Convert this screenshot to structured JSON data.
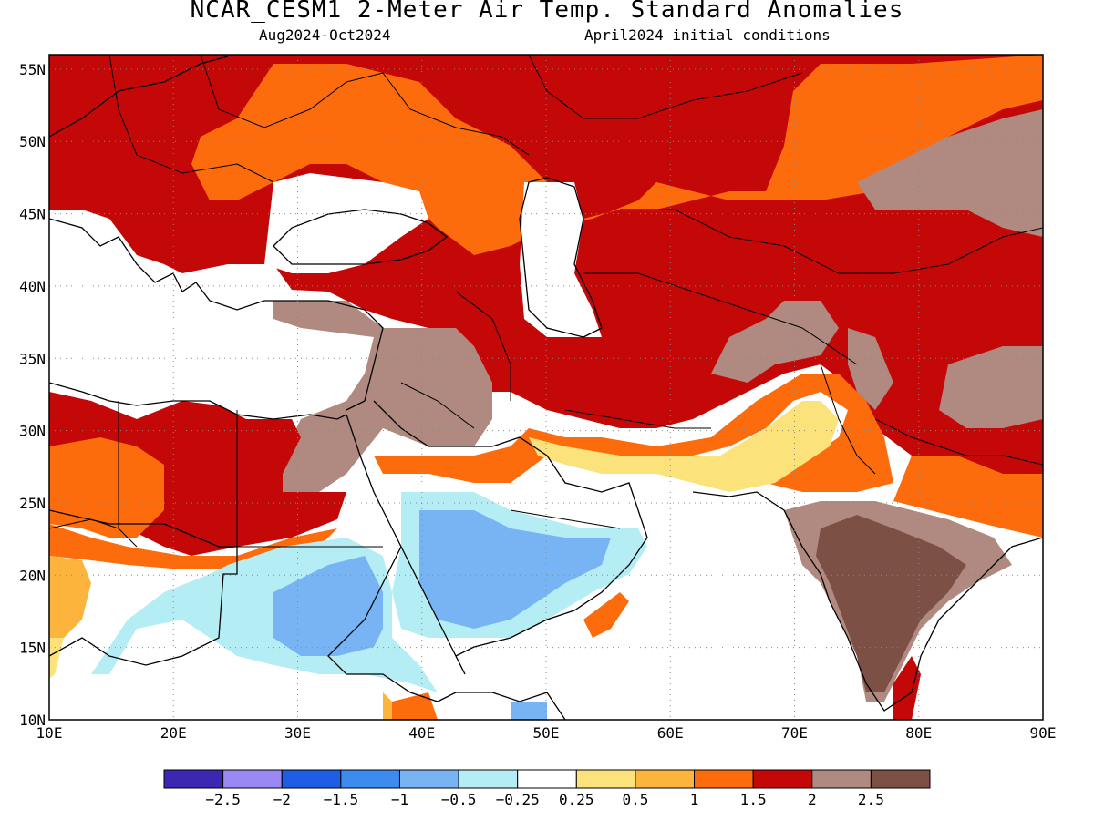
{
  "title": "NCAR_CESM1 2-Meter Air Temp. Standard Anomalies",
  "subtitle_left": "Aug2024-Oct2024",
  "subtitle_right": "April2024 initial conditions",
  "map": {
    "lon_labels": [
      "10E",
      "20E",
      "30E",
      "40E",
      "50E",
      "60E",
      "70E",
      "80E",
      "90E"
    ],
    "lat_labels": [
      "10N",
      "15N",
      "20N",
      "25N",
      "30N",
      "35N",
      "40N",
      "45N",
      "50N",
      "55N"
    ],
    "lon_values": [
      10,
      20,
      30,
      40,
      50,
      60,
      70,
      80,
      90
    ],
    "lat_values": [
      10,
      15,
      20,
      25,
      30,
      35,
      40,
      45,
      50,
      55
    ],
    "lon_range": [
      10,
      90
    ],
    "lat_range": [
      10,
      56
    ],
    "gridlines": "dotted"
  },
  "legend": {
    "colors": [
      "#3a28b4",
      "#9a88f4",
      "#1e5ee6",
      "#3c8cf0",
      "#78b4f4",
      "#b4eef4",
      "#ffffff",
      "#fce27a",
      "#fcb43c",
      "#fc6c0c",
      "#c40808",
      "#b08a80",
      "#7c5044"
    ],
    "labels": [
      "−2.5",
      "−2",
      "−1.5",
      "−1",
      "−0.5",
      "−0.25",
      "0.25",
      "0.5",
      "1",
      "1.5",
      "2",
      "2.5"
    ]
  }
}
